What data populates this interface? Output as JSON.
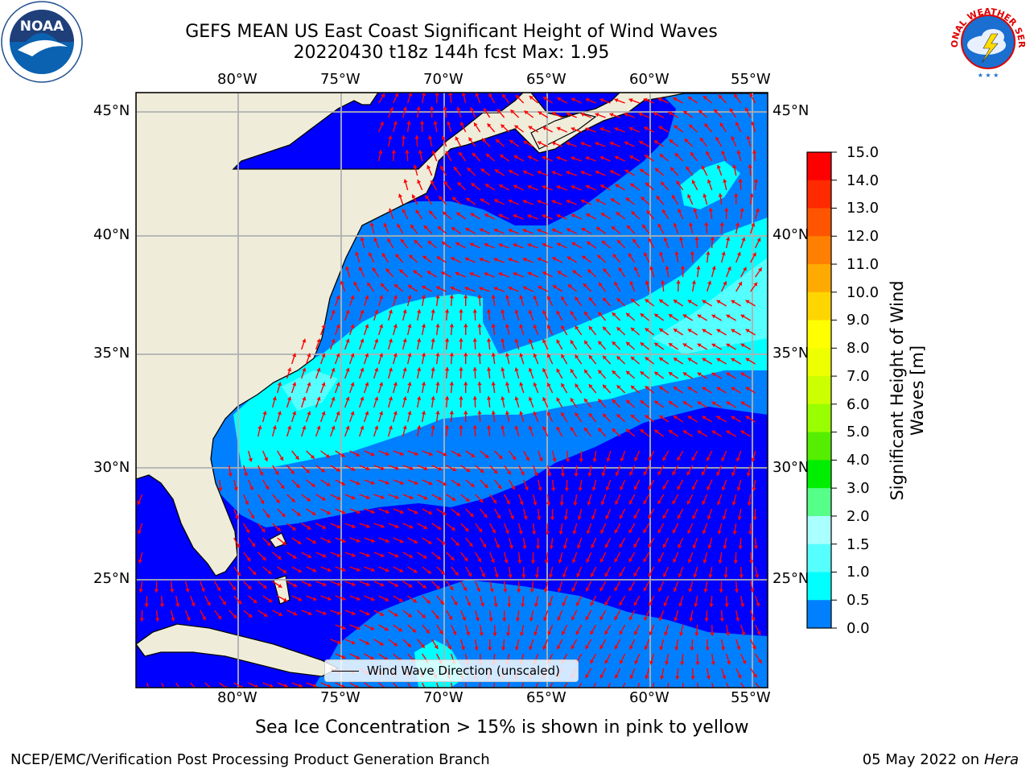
{
  "header": {
    "title_line1": "GEFS MEAN US East Coast Significant Height of Wind Waves",
    "title_line2": "20220430 t18z 144h fcst   Max: 1.95"
  },
  "logos": {
    "left": "NOAA",
    "right": "NATIONAL WEATHER SERVICE",
    "left_ring_text": "NATIONAL OCEANIC AND ATMOSPHERIC ADMINISTRATION · U.S. DEPARTMENT OF COMMERCE"
  },
  "map": {
    "lon_labels": [
      "80°W",
      "75°W",
      "70°W",
      "65°W",
      "60°W",
      "55°W"
    ],
    "lat_labels": [
      "45°N",
      "40°N",
      "35°N",
      "30°N",
      "25°N"
    ],
    "legend_label": "Wind Wave Direction (unscaled)",
    "colors": {
      "land": "#efedda",
      "ocean_0_0.5": "#0000ff",
      "ocean_0.5_1.0": "#0080ff",
      "ocean_1.0_1.5": "#00ffff",
      "ocean_1.5_2.0": "#55ffff",
      "arrows": "#ff0000",
      "grid": "#b0b0b0"
    }
  },
  "colorbar": {
    "title": "Significant Height of Wind Waves [m]",
    "ticks": [
      "15.0",
      "14.0",
      "13.0",
      "12.0",
      "11.0",
      "10.0",
      "9.0",
      "8.0",
      "7.0",
      "6.0",
      "5.0",
      "4.0",
      "3.0",
      "2.0",
      "1.5",
      "1.0",
      "0.5",
      "0.0"
    ],
    "colors": [
      "#ff0000",
      "#ff2a00",
      "#ff5500",
      "#ff8000",
      "#ffaa00",
      "#ffd500",
      "#ffff00",
      "#eeff00",
      "#ccff00",
      "#99ff00",
      "#55ee00",
      "#00ee00",
      "#55ff88",
      "#aaffff",
      "#55ffff",
      "#00ffff",
      "#0080ff",
      "#0000ff"
    ]
  },
  "footer": {
    "note": "Sea Ice Concentration > 15% is shown in pink to yellow",
    "credit": "NCEP/EMC/Verification Post Processing Product Generation Branch",
    "date": "05 May 2022 on",
    "machine": "Hera"
  }
}
